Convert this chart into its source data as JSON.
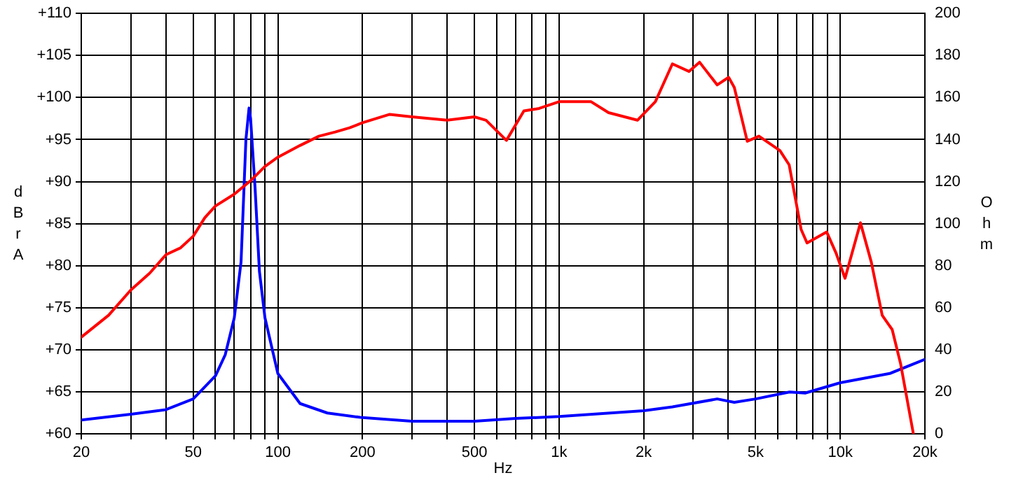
{
  "chart_data": {
    "type": "line",
    "xlabel": "Hz",
    "ylabel": "dBrA",
    "y2label": "Ohm",
    "log": "x",
    "grid": true,
    "legend": false,
    "marker": "none",
    "line_style": "solid",
    "xlim": [
      20,
      20000
    ],
    "xticks": [
      20,
      {
        "value": 30,
        "label": null
      },
      {
        "value": 40,
        "label": null
      },
      50,
      {
        "value": 60,
        "label": null
      },
      {
        "value": 70,
        "label": null
      },
      {
        "value": 80,
        "label": null
      },
      {
        "value": 90,
        "label": null
      },
      100,
      200,
      {
        "value": 300,
        "label": null
      },
      {
        "value": 400,
        "label": null
      },
      500,
      {
        "value": 600,
        "label": null
      },
      {
        "value": 700,
        "label": null
      },
      {
        "value": 800,
        "label": null
      },
      {
        "value": 900,
        "label": null
      },
      {
        "value": 1000,
        "label": "1k"
      },
      {
        "value": 2000,
        "label": "2k"
      },
      {
        "value": 3000,
        "label": null
      },
      {
        "value": 4000,
        "label": null
      },
      {
        "value": 5000,
        "label": "5k"
      },
      {
        "value": 6000,
        "label": null
      },
      {
        "value": 7000,
        "label": null
      },
      {
        "value": 8000,
        "label": null
      },
      {
        "value": 9000,
        "label": null
      },
      {
        "value": 10000,
        "label": "10k"
      },
      {
        "value": 20000,
        "label": "20k"
      }
    ],
    "ylim": [
      60,
      110
    ],
    "yticks": [
      {
        "value": 60,
        "label": "+60"
      },
      {
        "value": 65,
        "label": "+65"
      },
      {
        "value": 70,
        "label": "+70"
      },
      {
        "value": 75,
        "label": "+75"
      },
      {
        "value": 80,
        "label": "+80"
      },
      {
        "value": 85,
        "label": "+85"
      },
      {
        "value": 90,
        "label": "+90"
      },
      {
        "value": 95,
        "label": "+95"
      },
      {
        "value": 100,
        "label": "+100"
      },
      {
        "value": 105,
        "label": "+105"
      },
      {
        "value": 110,
        "label": "+110"
      }
    ],
    "y2lim": [
      0,
      200
    ],
    "y2ticks": [
      0,
      20,
      40,
      60,
      80,
      100,
      120,
      140,
      160,
      180,
      200
    ],
    "series": [
      {
        "color": "#ff0000",
        "axis": "y",
        "x": [
          20,
          25,
          30,
          35,
          40,
          45,
          50,
          55,
          60,
          70,
          80,
          90,
          100,
          120,
          140,
          160,
          180,
          200,
          250,
          300,
          400,
          500,
          550,
          650,
          750,
          850,
          1000,
          1300,
          1500,
          1900,
          2200,
          2530,
          2900,
          3160,
          3650,
          4010,
          4200,
          4670,
          5140,
          6100,
          6580,
          7260,
          7620,
          8950,
          9660,
          10400,
          11800,
          12900,
          14100,
          15300,
          16400,
          18200
        ],
        "values": [
          71.5,
          74.1,
          77.1,
          79.1,
          81.3,
          82.1,
          83.5,
          85.7,
          87.1,
          88.5,
          90.1,
          91.8,
          92.9,
          94.3,
          95.4,
          95.9,
          96.4,
          97.0,
          98.0,
          97.7,
          97.3,
          97.7,
          97.3,
          94.9,
          98.4,
          98.7,
          99.5,
          99.5,
          98.2,
          97.3,
          99.5,
          104.0,
          103.1,
          104.2,
          101.5,
          102.4,
          101.2,
          94.8,
          95.4,
          93.7,
          92.0,
          84.3,
          82.7,
          84.0,
          81.5,
          78.5,
          85.1,
          80.4,
          74.1,
          72.4,
          68.3,
          60
        ]
      },
      {
        "color": "#0000ff",
        "axis": "y2",
        "x": [
          20,
          30,
          40,
          50,
          60,
          65,
          70,
          74,
          77,
          79,
          80,
          83,
          86,
          90,
          100,
          120,
          150,
          200,
          300,
          500,
          700,
          1000,
          2000,
          2530,
          3650,
          4200,
          5000,
          6600,
          7500,
          10000,
          15000,
          20000
        ],
        "values": [
          6.6,
          9.3,
          11.5,
          16.6,
          27.6,
          37.6,
          55.2,
          81.8,
          140,
          155,
          150,
          117,
          77.3,
          55.2,
          28.7,
          14.4,
          9.9,
          7.7,
          6.0,
          6.0,
          7.3,
          8.2,
          11,
          12.8,
          16.6,
          15,
          16.6,
          19.9,
          19.4,
          24.3,
          28.7,
          35.4
        ]
      }
    ]
  }
}
